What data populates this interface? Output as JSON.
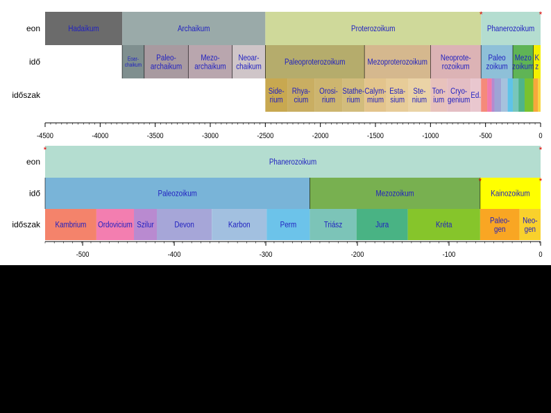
{
  "row_labels": {
    "eon": "eon",
    "ido": "idő",
    "idoszak": "időszak"
  },
  "top": {
    "range": [
      -4500,
      0
    ],
    "ticks": [
      -4500,
      -4000,
      -3500,
      -3000,
      -2500,
      -2000,
      -1500,
      -1000,
      -500,
      0
    ],
    "eon": [
      {
        "name": "Hadaikum",
        "lines": [
          "Hadaikum"
        ],
        "start": -4500,
        "end": -3800,
        "color": "#6b6b6b"
      },
      {
        "name": "Archaikum",
        "lines": [
          "Archaikum"
        ],
        "start": -3800,
        "end": -2500,
        "color": "#9aaaa9"
      },
      {
        "name": "Proterozoikum",
        "lines": [
          "Proterozoikum"
        ],
        "start": -2500,
        "end": -541,
        "color": "#cfd99a"
      },
      {
        "name": "Phanerozoikum",
        "lines": [
          "Phanerozoikum"
        ],
        "start": -541,
        "end": 0,
        "color": "#b4ddd0"
      }
    ],
    "ido": [
      {
        "name": "Eoarchaikum",
        "lines": [
          "Eoar-",
          "chaikum"
        ],
        "start": -3800,
        "end": -3600,
        "color": "#7f8f8f",
        "small": true
      },
      {
        "name": "Paleoarchaikum",
        "lines": [
          "Paleo-",
          "archaikum"
        ],
        "start": -3600,
        "end": -3200,
        "color": "#a89aa0"
      },
      {
        "name": "Mezoarchaikum",
        "lines": [
          "Mezo-",
          "archaikum"
        ],
        "start": -3200,
        "end": -2800,
        "color": "#b9a6ae"
      },
      {
        "name": "Neoarchaikum",
        "lines": [
          "Neoar-",
          "chaikum"
        ],
        "start": -2800,
        "end": -2500,
        "color": "#cfc5c8"
      },
      {
        "name": "Paleoproterozoikum",
        "lines": [
          "Paleoproterozoikum"
        ],
        "start": -2500,
        "end": -1600,
        "color": "#b5ac6c"
      },
      {
        "name": "Mezoproterozoikum",
        "lines": [
          "Mezoproterozoikum"
        ],
        "start": -1600,
        "end": -1000,
        "color": "#d5b88e"
      },
      {
        "name": "Neoproterozoikum",
        "lines": [
          "Neoprote-",
          "rozoikum"
        ],
        "start": -1000,
        "end": -541,
        "color": "#dcb3b5"
      },
      {
        "name": "Paleozoikum",
        "lines": [
          "Paleo",
          "zoikum"
        ],
        "start": -541,
        "end": -252,
        "color": "#8ec0d8"
      },
      {
        "name": "Mezozoikum",
        "lines": [
          "Mezo",
          "zoikum"
        ],
        "start": -252,
        "end": -66,
        "color": "#5fb455"
      },
      {
        "name": "Kainozoikum",
        "lines": [
          "K",
          "z"
        ],
        "start": -66,
        "end": 0,
        "color": "#f4f000"
      }
    ],
    "idoszak": [
      {
        "name": "Siderium",
        "lines": [
          "Side-",
          "rium"
        ],
        "start": -2500,
        "end": -2300,
        "color": "#c8a850"
      },
      {
        "name": "Rhyacium",
        "lines": [
          "Rhya-",
          "cium"
        ],
        "start": -2300,
        "end": -2050,
        "color": "#c9ae62"
      },
      {
        "name": "Orosirium",
        "lines": [
          "Orosi-",
          "rium"
        ],
        "start": -2050,
        "end": -1800,
        "color": "#cdb56f"
      },
      {
        "name": "Statherium",
        "lines": [
          "Stathe-",
          "rium"
        ],
        "start": -1800,
        "end": -1600,
        "color": "#d2bc7c"
      },
      {
        "name": "Calymmium",
        "lines": [
          "Calym-",
          "mium"
        ],
        "start": -1600,
        "end": -1400,
        "color": "#e3c48c"
      },
      {
        "name": "Ectasium",
        "lines": [
          "Esta-",
          "sium"
        ],
        "start": -1400,
        "end": -1200,
        "color": "#e7cc98"
      },
      {
        "name": "Stenium",
        "lines": [
          "Ste-",
          "nium"
        ],
        "start": -1200,
        "end": -1000,
        "color": "#ead3a6"
      },
      {
        "name": "Tonium",
        "lines": [
          "Ton-",
          "ium"
        ],
        "start": -1000,
        "end": -850,
        "color": "#e8c2bc"
      },
      {
        "name": "Cryogenium",
        "lines": [
          "Cryo-",
          "genium"
        ],
        "start": -850,
        "end": -635,
        "color": "#e4bec4"
      },
      {
        "name": "Ediacarium",
        "lines": [
          "Ed."
        ],
        "start": -635,
        "end": -541,
        "color": "#e9c7cf"
      }
    ],
    "phanero_strips": [
      {
        "start": -541,
        "end": -485,
        "color": "#f58a7a"
      },
      {
        "start": -485,
        "end": -444,
        "color": "#f27aab"
      },
      {
        "start": -444,
        "end": -419,
        "color": "#b48ad0"
      },
      {
        "start": -419,
        "end": -359,
        "color": "#9ea4d5"
      },
      {
        "start": -359,
        "end": -299,
        "color": "#a6c2dd"
      },
      {
        "start": -299,
        "end": -252,
        "color": "#5fc3e8"
      },
      {
        "start": -252,
        "end": -201,
        "color": "#78c6bb"
      },
      {
        "start": -201,
        "end": -145,
        "color": "#4fb48a"
      },
      {
        "start": -145,
        "end": -66,
        "color": "#79c22e"
      },
      {
        "start": -66,
        "end": -23,
        "color": "#f7a83b"
      },
      {
        "start": -23,
        "end": 0,
        "color": "#f9d640"
      }
    ],
    "markers": [
      -541,
      0
    ]
  },
  "bottom": {
    "range": [
      -541,
      0
    ],
    "ticks": [
      -500,
      -400,
      -300,
      -200,
      -100,
      0
    ],
    "eon": [
      {
        "name": "Phanerozoikum",
        "lines": [
          "Phanerozoikum"
        ],
        "start": -541,
        "end": 0,
        "color": "#b4ddd0"
      }
    ],
    "ido": [
      {
        "name": "Paleozoikum",
        "lines": [
          "Paleozoikum"
        ],
        "start": -541,
        "end": -252,
        "color": "#79b4d8"
      },
      {
        "name": "Mezozoikum",
        "lines": [
          "Mezozoikum"
        ],
        "start": -252,
        "end": -66,
        "color": "#78b050"
      },
      {
        "name": "Kainozoikum",
        "lines": [
          "Kainozoikum"
        ],
        "start": -66,
        "end": 0,
        "color": "#ffff00"
      }
    ],
    "idoszak": [
      {
        "name": "Kambrium",
        "lines": [
          "Kambrium"
        ],
        "start": -541,
        "end": -485,
        "color": "#f4836b"
      },
      {
        "name": "Ordovicium",
        "lines": [
          "Ordovicium"
        ],
        "start": -485,
        "end": -444,
        "color": "#f37eb0"
      },
      {
        "name": "Szilur",
        "lines": [
          "Szilur"
        ],
        "start": -444,
        "end": -419,
        "color": "#b98ad0"
      },
      {
        "name": "Devon",
        "lines": [
          "Devon"
        ],
        "start": -419,
        "end": -359,
        "color": "#a6a6d8"
      },
      {
        "name": "Karbon",
        "lines": [
          "Karbon"
        ],
        "start": -359,
        "end": -299,
        "color": "#a2c0e0"
      },
      {
        "name": "Perm",
        "lines": [
          "Perm"
        ],
        "start": -299,
        "end": -252,
        "color": "#6cc3ea"
      },
      {
        "name": "Triász",
        "lines": [
          "Triász"
        ],
        "start": -252,
        "end": -201,
        "color": "#7cc4b8"
      },
      {
        "name": "Jura",
        "lines": [
          "Jura"
        ],
        "start": -201,
        "end": -145,
        "color": "#49b384"
      },
      {
        "name": "Kréta",
        "lines": [
          "Kréta"
        ],
        "start": -145,
        "end": -66,
        "color": "#86c52b"
      },
      {
        "name": "Paleogen",
        "lines": [
          "Paleo-",
          "gen"
        ],
        "start": -66,
        "end": -23,
        "color": "#f9a623"
      },
      {
        "name": "Neogen",
        "lines": [
          "Neo-",
          "gen"
        ],
        "start": -23,
        "end": 0,
        "color": "#f9d12c"
      }
    ],
    "markers_eon": [
      -541,
      0
    ],
    "markers_ido": [
      -66,
      0
    ]
  },
  "colors": {
    "text": "#2020c0",
    "marker": "#e00000",
    "axis": "#000000"
  }
}
